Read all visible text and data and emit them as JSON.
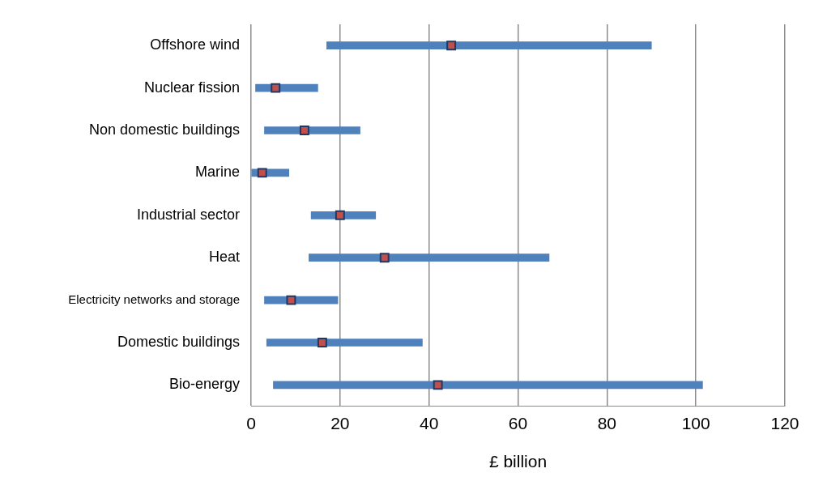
{
  "chart_data": {
    "type": "bar",
    "orientation": "horizontal",
    "xlabel": "£ billion",
    "categories": [
      "Offshore wind",
      "Nuclear fission",
      "Non domestic buildings",
      "Marine",
      "Industrial sector",
      "Heat",
      "Electricity networks and storage",
      "Domestic buildings",
      "Bio-energy"
    ],
    "series": [
      {
        "color": "#4f81bd",
        "base": [
          17,
          1,
          3,
          0,
          13.5,
          13,
          3,
          3.5,
          5
        ],
        "values": [
          73,
          14,
          21.5,
          8.5,
          14.5,
          54,
          16.5,
          35,
          96.5
        ]
      },
      {
        "type": "scatter",
        "color": "#c0504d",
        "marker": "square",
        "x": [
          "Offshore wind",
          "Nuclear fission",
          "Non domestic buildings",
          "Marine",
          "Industrial sector",
          "Heat",
          "Electricity networks and storage",
          "Domestic buildings",
          "Bio-energy"
        ],
        "values": [
          45,
          5.5,
          12,
          2.5,
          20,
          30,
          9,
          16,
          42
        ]
      }
    ],
    "xlim": [
      0,
      120
    ],
    "xticks": [
      0,
      20,
      40,
      60,
      80,
      100,
      120
    ],
    "grid": "x",
    "legend": false
  }
}
